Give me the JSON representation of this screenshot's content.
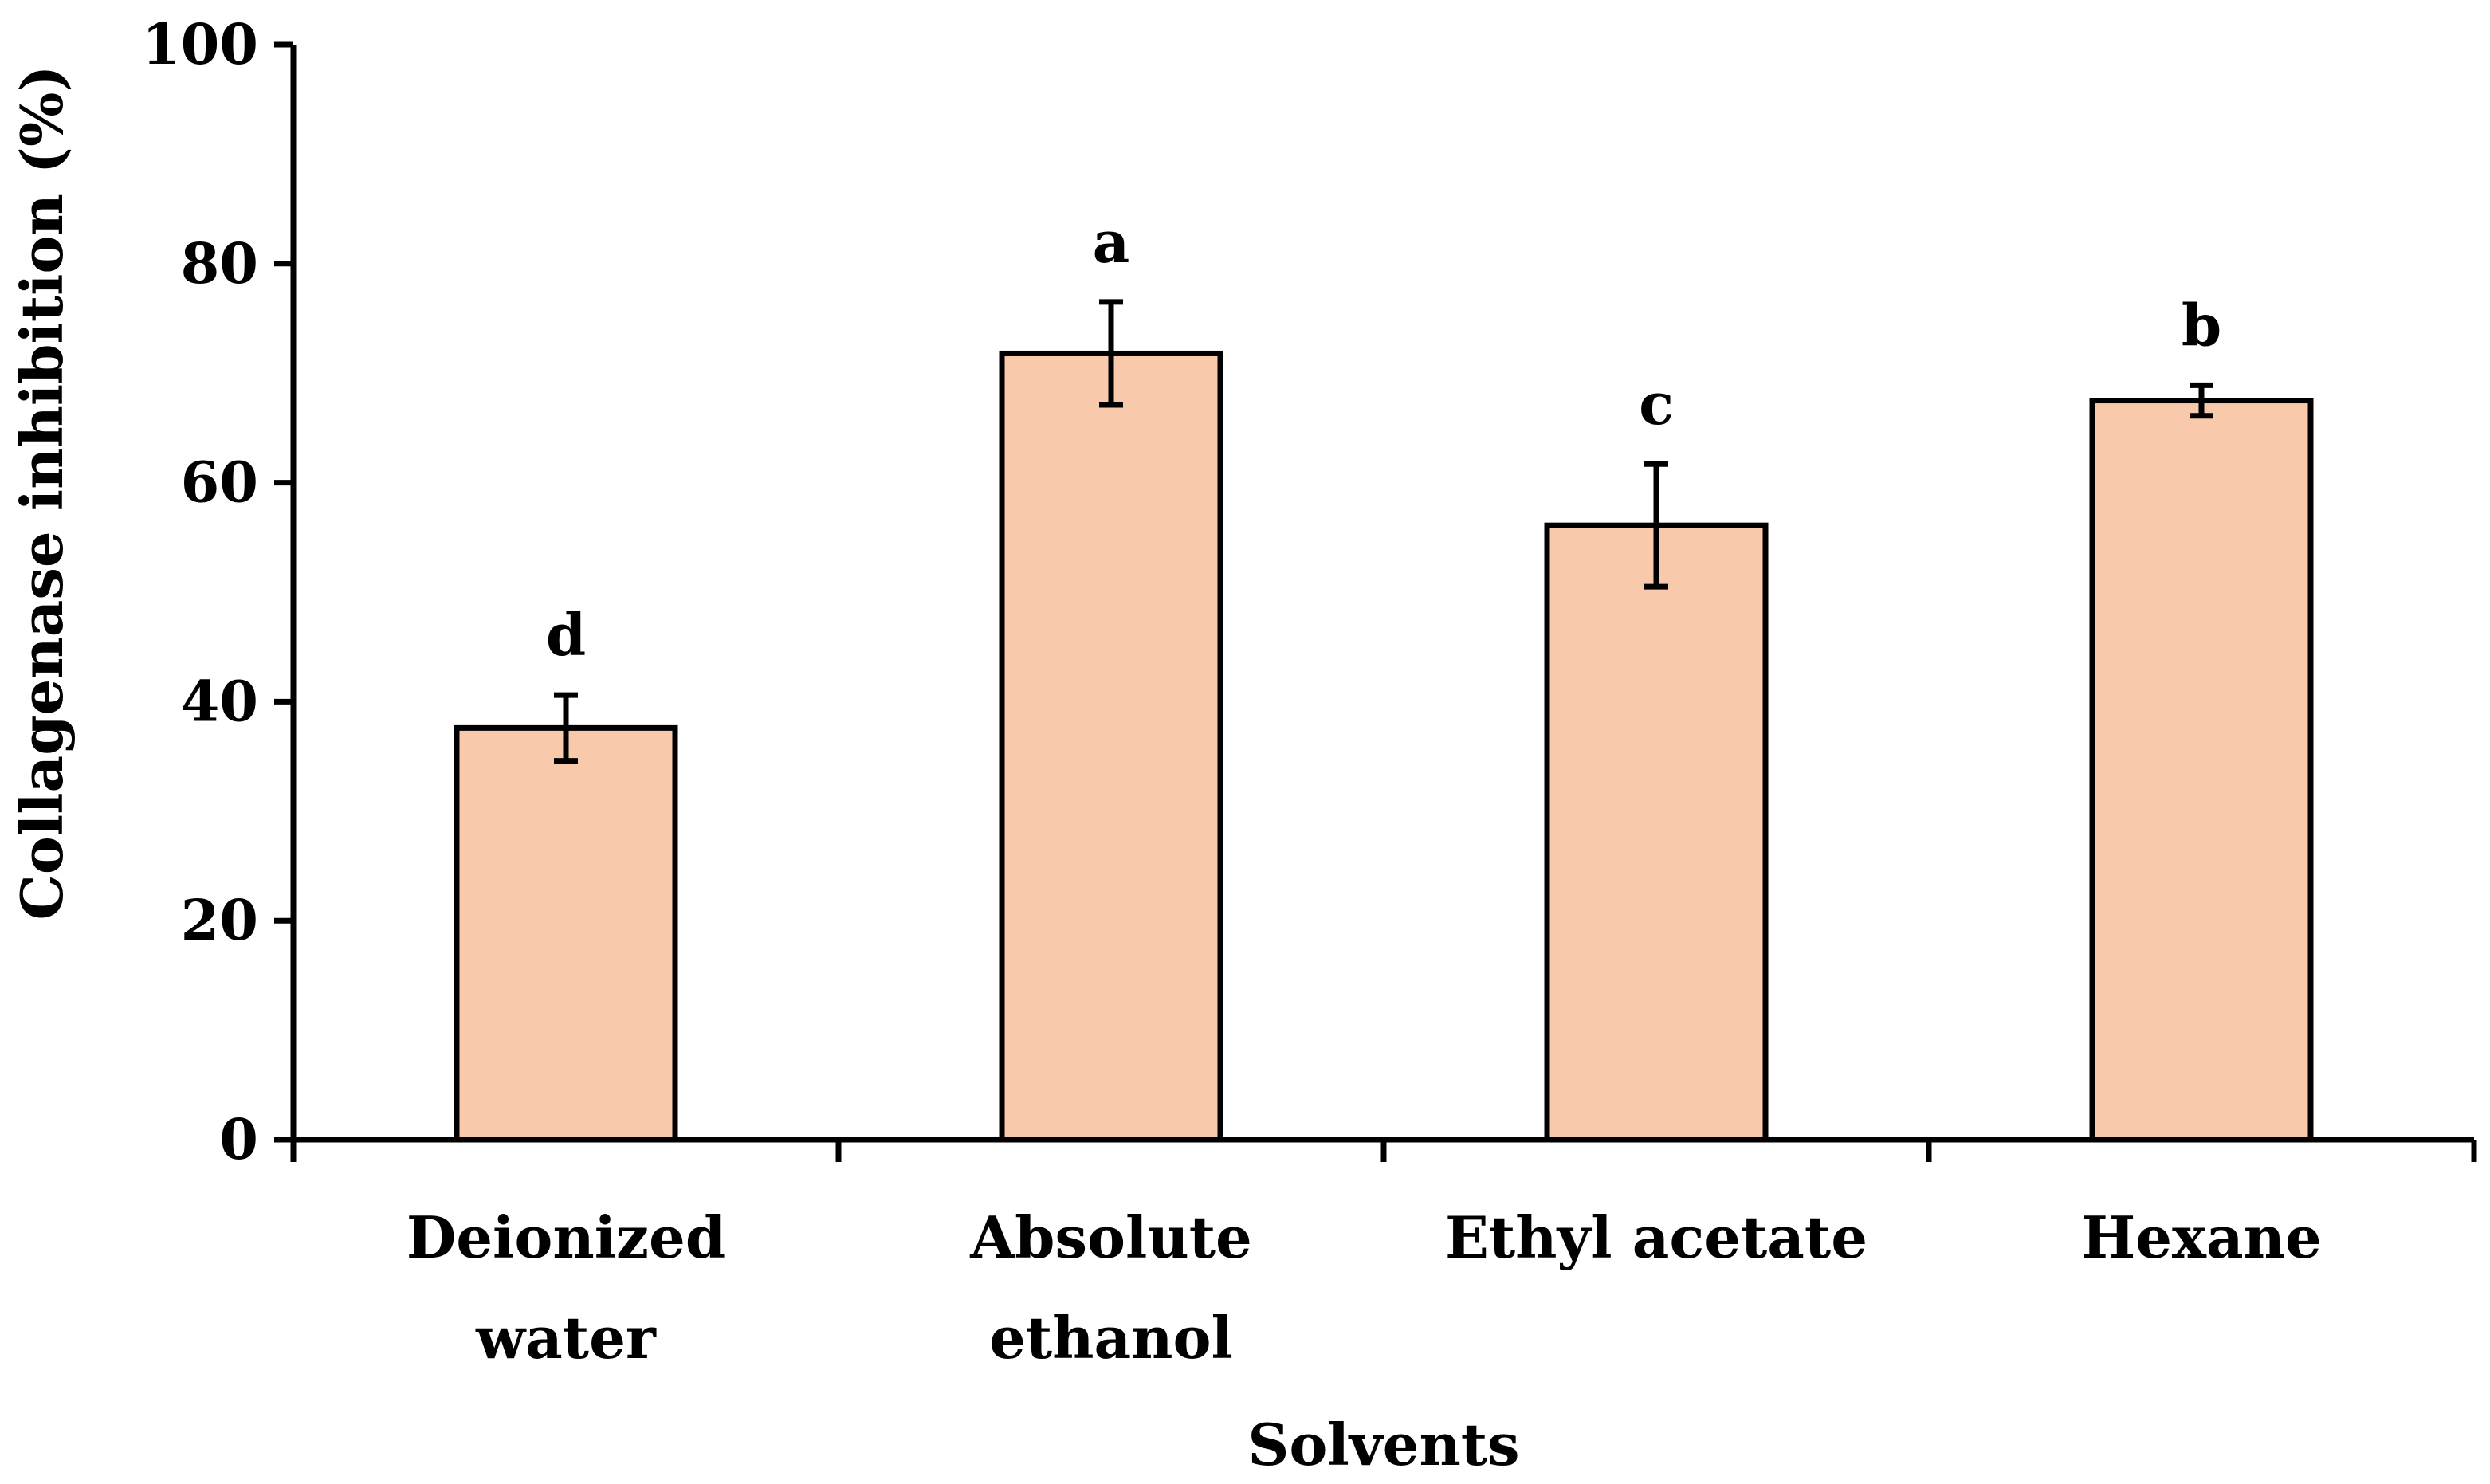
{
  "chart_data": {
    "type": "bar",
    "categories": [
      [
        "Deionized",
        "water"
      ],
      [
        "Absolute",
        "ethanol"
      ],
      [
        "Ethyl acetate"
      ],
      [
        "Hexane"
      ]
    ],
    "values": [
      37.6,
      71.8,
      56.1,
      67.5
    ],
    "errors": [
      3.0,
      4.7,
      5.6,
      1.4
    ],
    "letters": [
      "d",
      "a",
      "c",
      "b"
    ],
    "xlabel": "Solvents",
    "ylabel": "Collagenase inhibition (%)",
    "ylim": [
      0,
      100
    ],
    "yticks": [
      0,
      20,
      40,
      60,
      80,
      100
    ],
    "grid": false,
    "colors": {
      "bar_fill": "#f8caab",
      "bar_stroke": "#000000"
    }
  }
}
